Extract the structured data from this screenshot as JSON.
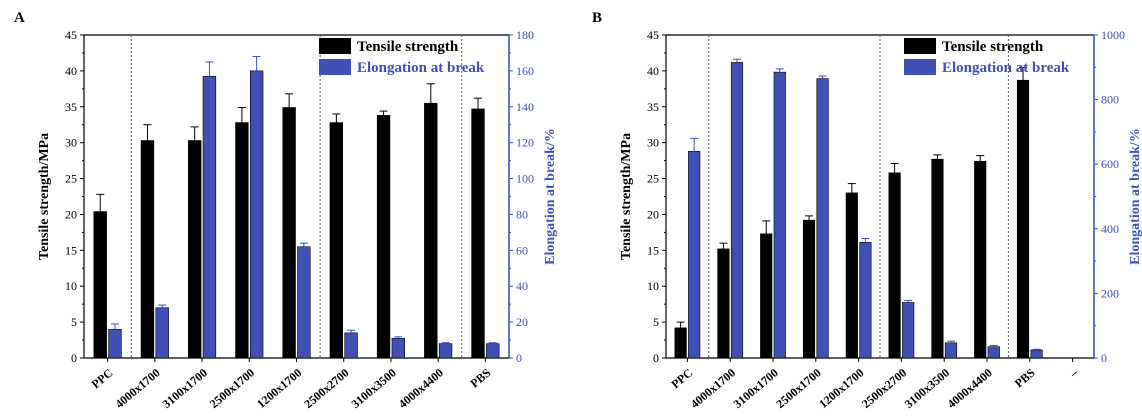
{
  "figure": {
    "panel_labels": [
      "A",
      "B"
    ]
  },
  "colors": {
    "tensile": "#000000",
    "elongation": "#3f51b5",
    "axis_black": "#000000",
    "axis_blue": "#3f51b5",
    "separator": "#555555"
  },
  "chart_data": [
    {
      "type": "bar",
      "panel": "A",
      "categories": [
        "PPC",
        "4000x1700",
        "3100x1700",
        "2500x1700",
        "1200x1700",
        "2500x2700",
        "3100x3500",
        "4000x4400",
        "PBS"
      ],
      "ylabel": "Tensile strength/MPa",
      "y2label": "Elongation at break/%",
      "ylim": [
        0,
        45
      ],
      "y2lim": [
        0,
        180
      ],
      "yticks": [
        0,
        5,
        10,
        15,
        20,
        25,
        30,
        35,
        40,
        45
      ],
      "y2ticks": [
        0,
        20,
        40,
        60,
        80,
        100,
        120,
        140,
        160,
        180
      ],
      "separators_after": [
        0,
        4,
        7
      ],
      "legend_position": "top-right",
      "series": [
        {
          "name": "Tensile strength",
          "axis": "left",
          "values": [
            20.4,
            30.3,
            30.3,
            32.8,
            34.9,
            32.8,
            33.8,
            35.5,
            34.7
          ],
          "errors": [
            2.4,
            2.2,
            1.9,
            2.1,
            1.9,
            1.2,
            0.6,
            2.7,
            1.5
          ]
        },
        {
          "name": "Elongation at break",
          "axis": "right",
          "values": [
            16,
            28,
            157,
            160,
            62,
            14,
            11,
            8,
            8
          ],
          "errors": [
            3,
            1.5,
            8,
            8,
            2,
            1.5,
            0.8,
            0.5,
            0.5
          ]
        }
      ]
    },
    {
      "type": "bar",
      "panel": "B",
      "categories": [
        "PPC",
        "4000x1700",
        "3100x1700",
        "2500x1700",
        "1200x1700",
        "2500x2700",
        "3100x3500",
        "4000x4400",
        "PBS",
        "–"
      ],
      "ylabel": "Tensile strength/MPa",
      "y2label": "Elongation at break/%",
      "ylim": [
        0,
        45
      ],
      "y2lim": [
        0,
        1000
      ],
      "yticks": [
        0,
        5,
        10,
        15,
        20,
        25,
        30,
        35,
        40,
        45
      ],
      "y2ticks": [
        0,
        200,
        400,
        600,
        800,
        1000
      ],
      "separators_after": [
        0,
        4,
        7
      ],
      "legend_position": "top-right",
      "series": [
        {
          "name": "Tensile strength",
          "axis": "left",
          "values": [
            4.2,
            15.2,
            17.3,
            19.2,
            23.0,
            25.8,
            27.7,
            27.4,
            38.7,
            null
          ],
          "errors": [
            0.8,
            0.8,
            1.8,
            0.6,
            1.3,
            1.3,
            0.6,
            0.8,
            1.8,
            null
          ]
        },
        {
          "name": "Elongation at break",
          "axis": "right",
          "values": [
            640,
            915,
            885,
            865,
            358,
            172,
            47,
            35,
            25,
            null
          ],
          "errors": [
            40,
            10,
            10,
            8,
            12,
            6,
            5,
            4,
            2,
            null
          ]
        }
      ]
    }
  ]
}
